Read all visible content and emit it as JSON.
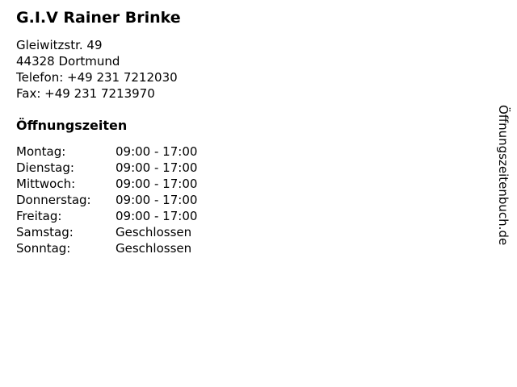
{
  "business": {
    "name": "G.I.V Rainer Brinke",
    "address_line1": "Gleiwitzstr. 49",
    "address_line2": "44328 Dortmund",
    "phone_line": "Telefon: +49 231 7212030",
    "fax_line": "Fax: +49 231 7213970"
  },
  "hours": {
    "heading": "Öffnungszeiten",
    "rows": [
      {
        "day": "Montag:",
        "time": "09:00 - 17:00"
      },
      {
        "day": "Dienstag:",
        "time": "09:00 - 17:00"
      },
      {
        "day": "Mittwoch:",
        "time": "09:00 - 17:00"
      },
      {
        "day": "Donnerstag:",
        "time": "09:00 - 17:00"
      },
      {
        "day": "Freitag:",
        "time": "09:00 - 17:00"
      },
      {
        "day": "Samstag:",
        "time": "Geschlossen"
      },
      {
        "day": "Sonntag:",
        "time": "Geschlossen"
      }
    ]
  },
  "watermark": "Öffnungszeitenbuch.de",
  "colors": {
    "text": "#000000",
    "background": "#ffffff"
  }
}
